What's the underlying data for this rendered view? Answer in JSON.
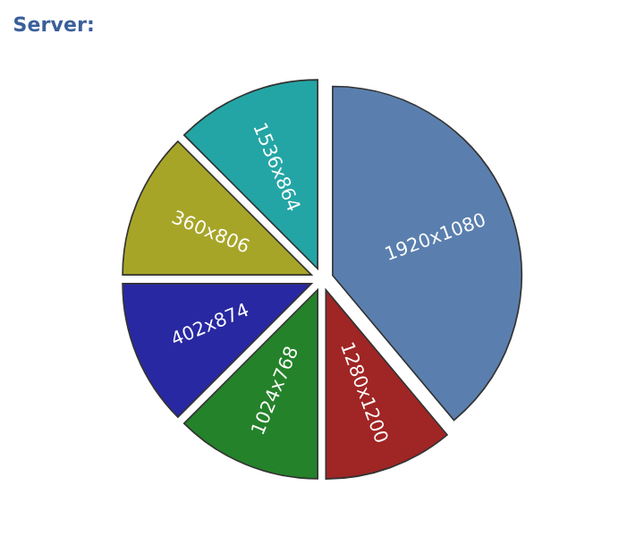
{
  "chart_data": {
    "type": "pie",
    "title": "Server:",
    "categories": [
      "1920x1080",
      "1280x1200",
      "1024x768",
      "402x874",
      "360x806",
      "1536x864"
    ],
    "values": [
      38.9,
      11.1,
      12.5,
      12.5,
      12.5,
      12.5
    ],
    "colors": [
      "#5a7fae",
      "#a02525",
      "#24822a",
      "#2828a2",
      "#a7a528",
      "#24a5a5"
    ],
    "legend": false
  }
}
